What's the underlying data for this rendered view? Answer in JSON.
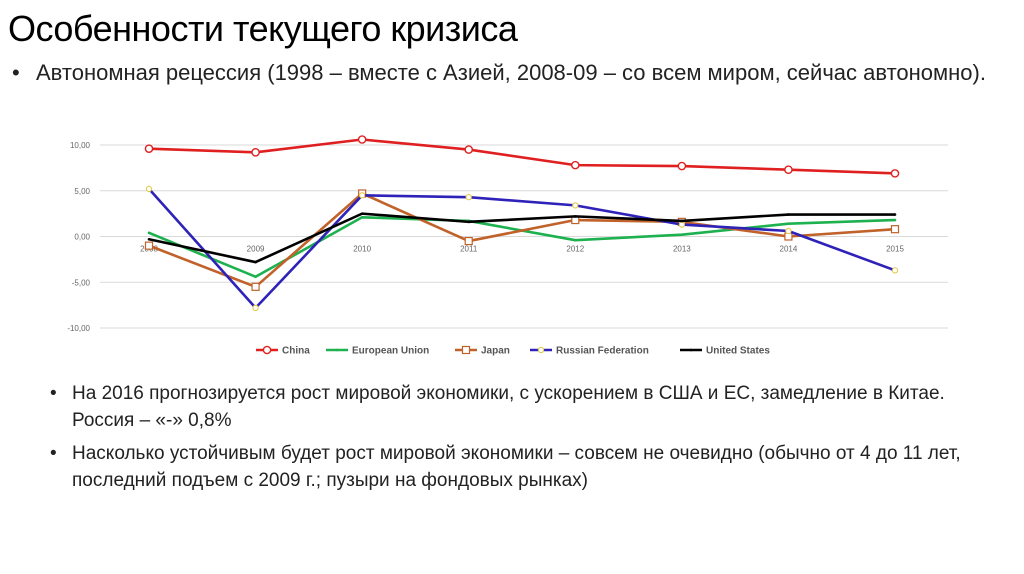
{
  "slide": {
    "title": "Особенности текущего кризиса",
    "bullet_top": "Автономная рецессия (1998 – вместе с Азией, 2008-09 – со всем миром, сейчас автономно).",
    "bullets_bottom": [
      "На 2016 прогнозируется рост мировой экономики, с ускорением в США и ЕС, замедление в Китае. Россия – «-» 0,8%",
      "Насколько устойчивым будет рост мировой экономики – совсем не очевидно (обычно от 4 до 11 лет, последний подъем с 2009 г.; пузыри на фондовых рынках)"
    ],
    "bullet_symbol": "•"
  },
  "chart_data": {
    "type": "line",
    "x": [
      "2008",
      "2009",
      "2010",
      "2011",
      "2012",
      "2013",
      "2014",
      "2015"
    ],
    "y_ticks": [
      "10,00",
      "5,00",
      "0,00",
      "-5,00",
      "-10,00"
    ],
    "ylim": [
      -10,
      10
    ],
    "grid": true,
    "legend_position": "bottom",
    "series": [
      {
        "name": "China",
        "color": "#e02020",
        "marker": "circle",
        "values": [
          9.6,
          9.2,
          10.6,
          9.5,
          7.8,
          7.7,
          7.3,
          6.9
        ]
      },
      {
        "name": "European Union",
        "color": "#1db14f",
        "marker": "none",
        "values": [
          0.4,
          -4.4,
          2.1,
          1.7,
          -0.4,
          0.2,
          1.4,
          1.8
        ]
      },
      {
        "name": "Japan",
        "color": "#c0622a",
        "marker": "square",
        "values": [
          -1.0,
          -5.5,
          4.7,
          -0.5,
          1.8,
          1.6,
          0.0,
          0.8
        ]
      },
      {
        "name": "Russian Federation",
        "color": "#2e22b8",
        "marker": "circle-yellow",
        "values": [
          5.2,
          -7.8,
          4.5,
          4.3,
          3.4,
          1.3,
          0.6,
          -3.7
        ]
      },
      {
        "name": "United States",
        "color": "#000000",
        "marker": "none",
        "values": [
          -0.3,
          -2.8,
          2.5,
          1.6,
          2.2,
          1.7,
          2.4,
          2.4
        ]
      }
    ]
  }
}
